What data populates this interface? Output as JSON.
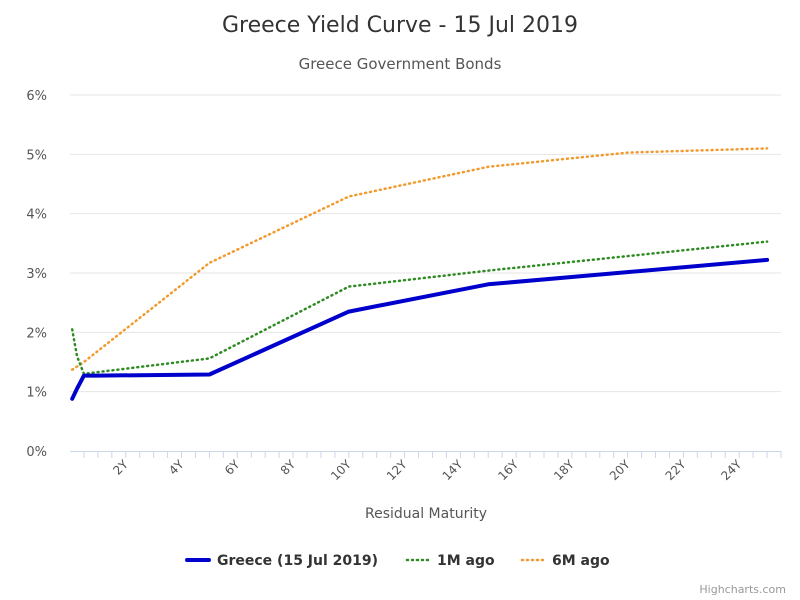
{
  "chart_data": {
    "type": "line",
    "title": "Greece Yield Curve - 15 Jul 2019",
    "subtitle": "Greece Government Bonds",
    "xlabel": "Residual Maturity",
    "ylabel": "",
    "xlim": [
      0,
      25.5
    ],
    "ylim": [
      0,
      6
    ],
    "x_ticks": [
      2,
      4,
      6,
      8,
      10,
      12,
      14,
      16,
      18,
      20,
      22,
      24
    ],
    "x_tick_labels": [
      "2Y",
      "4Y",
      "6Y",
      "8Y",
      "10Y",
      "12Y",
      "14Y",
      "16Y",
      "18Y",
      "20Y",
      "22Y",
      "24Y"
    ],
    "y_ticks": [
      0,
      1,
      2,
      3,
      4,
      5,
      6
    ],
    "y_tick_labels": [
      "0%",
      "1%",
      "2%",
      "3%",
      "4%",
      "5%",
      "6%"
    ],
    "grid": "horizontal",
    "legend": "bottom-center",
    "series": [
      {
        "name": "Greece (15 Jul 2019)",
        "color": "#0000cc",
        "style": "solid",
        "x": [
          0.08,
          0.25,
          0.5,
          1,
          5,
          10,
          15,
          25
        ],
        "values": [
          0.88,
          1.05,
          1.27,
          1.27,
          1.29,
          2.35,
          2.81,
          3.22
        ]
      },
      {
        "name": "1M ago",
        "color": "#2e8b22",
        "style": "dotted",
        "x": [
          0.08,
          0.25,
          0.5,
          1,
          5,
          10,
          15,
          25
        ],
        "values": [
          2.05,
          1.6,
          1.3,
          1.33,
          1.56,
          2.77,
          3.04,
          3.53
        ]
      },
      {
        "name": "6M ago",
        "color": "#f29a2e",
        "style": "dotted",
        "x": [
          0.08,
          0.5,
          5,
          10,
          15,
          20,
          25
        ],
        "values": [
          1.37,
          1.5,
          3.17,
          4.29,
          4.79,
          5.03,
          5.1
        ]
      }
    ]
  },
  "credits": "Highcharts.com"
}
